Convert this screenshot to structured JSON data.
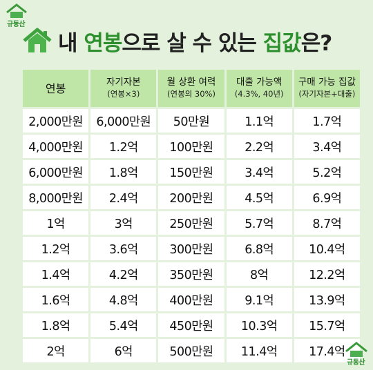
{
  "logo": {
    "text": "규동산"
  },
  "title": {
    "part1": "내 ",
    "highlight1": "연봉",
    "part2": "으로 살 수 있는 ",
    "highlight2": "집값",
    "part3": "은?"
  },
  "table": {
    "headers": [
      {
        "main": "연봉",
        "sub": ""
      },
      {
        "main": "자기자본",
        "sub": "(연봉×3)"
      },
      {
        "main": "월 상환 여력",
        "sub": "(연봉의 30%)"
      },
      {
        "main": "대출 가능액",
        "sub": "(4.3%, 40년)"
      },
      {
        "main": "구매 가능 집값",
        "sub": "(자기자본+대출)"
      }
    ],
    "rows": [
      [
        "2,000만원",
        "6,000만원",
        "50만원",
        "1.1억",
        "1.7억"
      ],
      [
        "4,000만원",
        "1.2억",
        "100만원",
        "2.2억",
        "3.4억"
      ],
      [
        "6,000만원",
        "1.8억",
        "150만원",
        "3.4억",
        "5.2억"
      ],
      [
        "8,000만원",
        "2.4억",
        "200만원",
        "4.5억",
        "6.9억"
      ],
      [
        "1억",
        "3억",
        "250만원",
        "5.7억",
        "8.7억"
      ],
      [
        "1.2억",
        "3.6억",
        "300만원",
        "6.8억",
        "10.4억"
      ],
      [
        "1.4억",
        "4.2억",
        "350만원",
        "8억",
        "12.2억"
      ],
      [
        "1.6억",
        "4.8억",
        "400만원",
        "9.1억",
        "13.9억"
      ],
      [
        "1.8억",
        "5.4억",
        "450만원",
        "10.3억",
        "15.7억"
      ],
      [
        "2억",
        "6억",
        "500만원",
        "11.4억",
        "17.4억"
      ]
    ]
  },
  "colors": {
    "accent": "#2d8f2d",
    "header_bg": "#bfe6a6",
    "page_bg": "#e4f1dc"
  }
}
